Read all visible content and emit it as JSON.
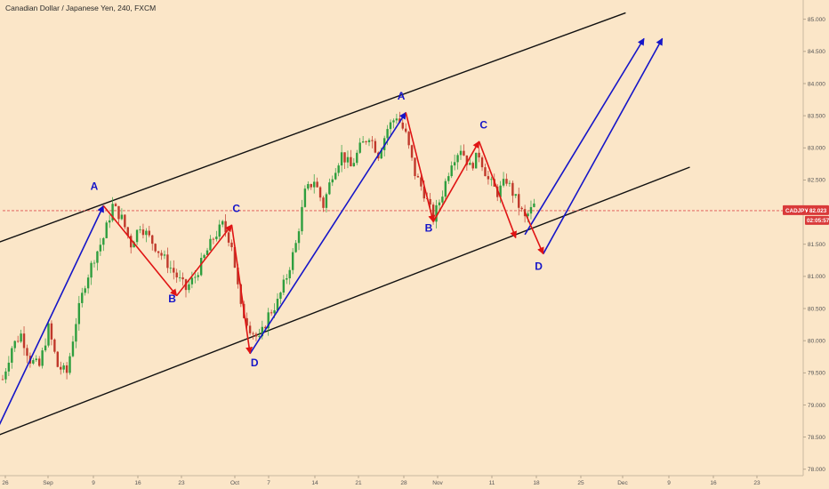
{
  "chart_data": {
    "type": "candlestick",
    "title": "Canadian Dollar / Japanese Yen, 240, FXCM",
    "symbol": "CADJPY",
    "last_price": "82.023",
    "countdown": "02:05:57",
    "x_tick_labels": [
      "26",
      "Sep",
      "9",
      "16",
      "23",
      "Oct",
      "7",
      "14",
      "21",
      "28",
      "Nov",
      "11",
      "18",
      "25",
      "Dec",
      "9",
      "16",
      "23"
    ],
    "y_tick_labels": [
      "78.000",
      "78.500",
      "79.000",
      "79.500",
      "80.000",
      "80.500",
      "81.000",
      "81.500",
      "82.000",
      "82.500",
      "83.000",
      "83.500",
      "84.000",
      "84.500",
      "85.000"
    ],
    "ylim": [
      77.9,
      85.3
    ],
    "price_path": [
      [
        0,
        79.4
      ],
      [
        1,
        79.9
      ],
      [
        2,
        80.1
      ],
      [
        3,
        79.7
      ],
      [
        4,
        79.6
      ],
      [
        5,
        80.2
      ],
      [
        6,
        79.6
      ],
      [
        7,
        79.5
      ],
      [
        8,
        80.3
      ],
      [
        9,
        80.9
      ],
      [
        10,
        81.3
      ],
      [
        11,
        81.6
      ],
      [
        12,
        82.1
      ],
      [
        13,
        81.9
      ],
      [
        14,
        81.5
      ],
      [
        15,
        81.8
      ],
      [
        16,
        81.6
      ],
      [
        17,
        81.4
      ],
      [
        18,
        81.2
      ],
      [
        19,
        81.0
      ],
      [
        20,
        80.8
      ],
      [
        21,
        81.0
      ],
      [
        22,
        81.3
      ],
      [
        23,
        81.6
      ],
      [
        24,
        81.8
      ],
      [
        25,
        81.5
      ],
      [
        26,
        80.5
      ],
      [
        27,
        80.2
      ],
      [
        28,
        80.0
      ],
      [
        29,
        80.4
      ],
      [
        30,
        80.6
      ],
      [
        31,
        81.0
      ],
      [
        32,
        81.5
      ],
      [
        33,
        82.3
      ],
      [
        34,
        82.5
      ],
      [
        35,
        82.1
      ],
      [
        36,
        82.6
      ],
      [
        37,
        82.9
      ],
      [
        38,
        82.7
      ],
      [
        39,
        83.0
      ],
      [
        40,
        83.2
      ],
      [
        41,
        82.9
      ],
      [
        42,
        83.3
      ],
      [
        43,
        83.5
      ],
      [
        44,
        83.2
      ],
      [
        45,
        82.6
      ],
      [
        46,
        82.3
      ],
      [
        47,
        81.9
      ],
      [
        48,
        82.3
      ],
      [
        49,
        82.8
      ],
      [
        50,
        83.0
      ],
      [
        51,
        82.7
      ],
      [
        52,
        82.9
      ],
      [
        53,
        82.5
      ],
      [
        54,
        82.3
      ],
      [
        55,
        82.5
      ],
      [
        56,
        82.2
      ],
      [
        57,
        81.9
      ],
      [
        58,
        82.1
      ]
    ],
    "channel_lines": [
      {
        "name": "upper",
        "from": [
          -1,
          81.5
        ],
        "to": [
          68,
          85.1
        ]
      },
      {
        "name": "lower",
        "from": [
          -1,
          78.5
        ],
        "to": [
          75,
          82.7
        ]
      }
    ],
    "impulse_waves": [
      {
        "from": [
          -1,
          78.5
        ],
        "to": [
          11,
          82.1
        ]
      },
      {
        "from": [
          27,
          79.8
        ],
        "to": [
          44,
          83.55
        ]
      },
      {
        "from": [
          57,
          81.65
        ],
        "to": [
          70,
          84.7
        ]
      },
      {
        "from": [
          59,
          81.35
        ],
        "to": [
          72,
          84.7
        ]
      }
    ],
    "corrective_waves": [
      {
        "points": [
          [
            11,
            82.1
          ],
          [
            19,
            80.7
          ],
          [
            25,
            81.8
          ],
          [
            27,
            79.8
          ]
        ]
      },
      {
        "points": [
          [
            44,
            83.55
          ],
          [
            47,
            81.85
          ],
          [
            52,
            83.1
          ],
          [
            56,
            81.6
          ]
        ]
      },
      {
        "points": [
          [
            57,
            82.0
          ],
          [
            59,
            81.35
          ]
        ]
      }
    ],
    "wave_labels": [
      {
        "text": "A",
        "at": [
          10,
          82.35
        ],
        "color": "#1515c8"
      },
      {
        "text": "B",
        "at": [
          18.5,
          80.6
        ],
        "color": "#1515c8"
      },
      {
        "text": "C",
        "at": [
          25.5,
          82.0
        ],
        "color": "#1515c8"
      },
      {
        "text": "D",
        "at": [
          27.5,
          79.6
        ],
        "color": "#1515c8"
      },
      {
        "text": "A",
        "at": [
          43.5,
          83.75
        ],
        "color": "#1515c8"
      },
      {
        "text": "B",
        "at": [
          46.5,
          81.7
        ],
        "color": "#1515c8"
      },
      {
        "text": "C",
        "at": [
          52.5,
          83.3
        ],
        "color": "#1515c8"
      },
      {
        "text": "D",
        "at": [
          58.5,
          81.1
        ],
        "color": "#1515c8"
      }
    ],
    "colors": {
      "background": "#fbe6c8",
      "up_candle": "#2e9e3e",
      "down_candle": "#c0392b",
      "impulse": "#1515c8",
      "corrective": "#e01414",
      "channel": "#111111",
      "price_line": "#e05050",
      "price_tag": "#d93a3a"
    },
    "grid": false
  }
}
